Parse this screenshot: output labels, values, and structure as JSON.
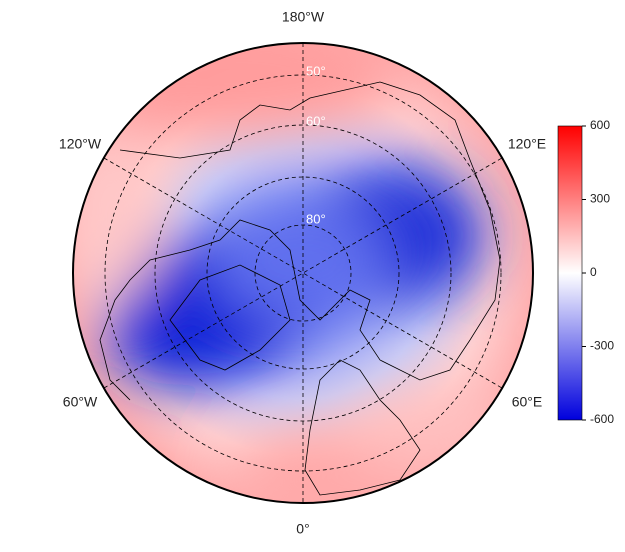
{
  "map": {
    "longitude_labels": [
      "180°W",
      "120°W",
      "120°E",
      "60°W",
      "60°E",
      "0°"
    ],
    "latitude_labels": [
      "50°",
      "60°",
      "80°"
    ]
  },
  "colorbar": {
    "lim": [
      -600,
      600
    ],
    "ticks": [
      600,
      300,
      0,
      -300,
      -600
    ],
    "colors": [
      "#0000dd",
      "#ffffff",
      "#ff0000"
    ]
  }
}
